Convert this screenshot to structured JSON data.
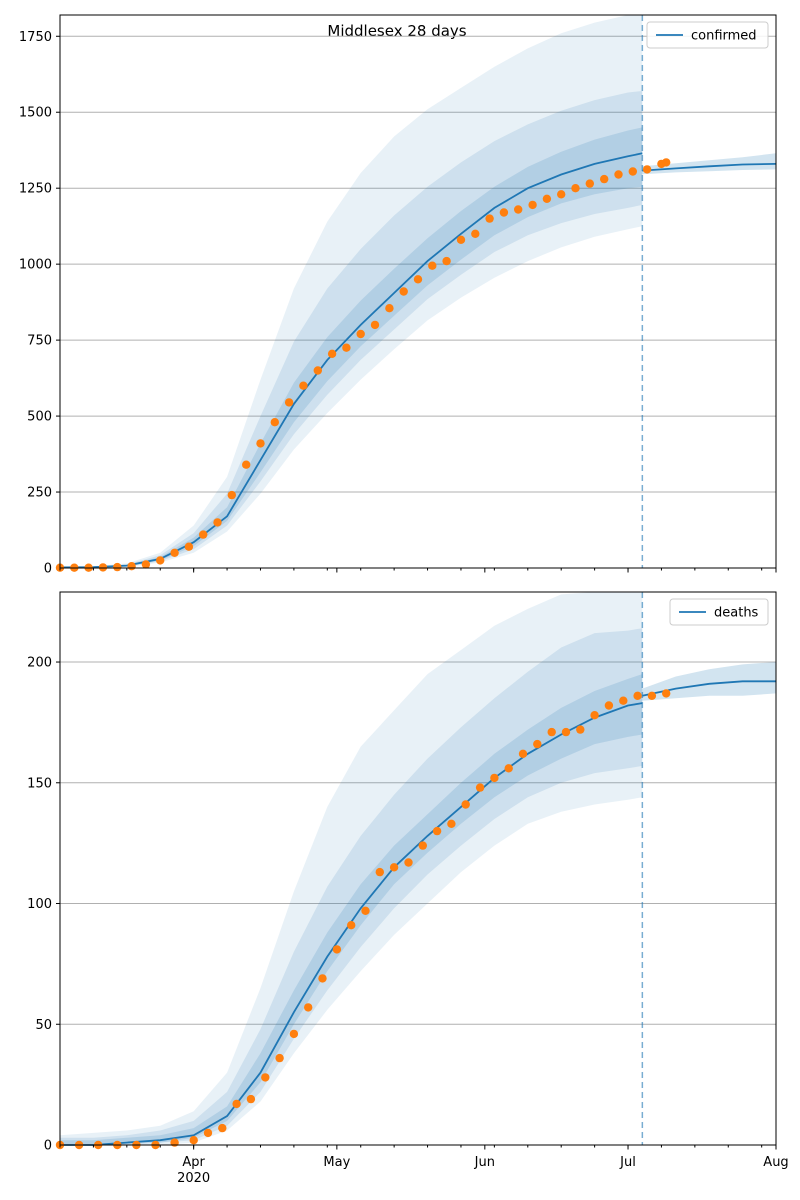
{
  "title": "Middlesex 28 days",
  "colors": {
    "model_line": "#1f77b4",
    "observed": "#ff7f0e",
    "band": "#1f77b4",
    "grid": "#b0b0b0"
  },
  "chart_data": [
    {
      "type": "line",
      "panel": "top",
      "title": "Middlesex 28 days",
      "legend": {
        "label": "confirmed",
        "placement": "top-right"
      },
      "xlabel": "",
      "ylabel": "",
      "xlim": [
        "2020-03-04",
        "2020-08-01"
      ],
      "ylim": [
        0,
        1820
      ],
      "yticks": [
        0,
        250,
        500,
        750,
        1000,
        1250,
        1500,
        1750
      ],
      "xticks": [
        {
          "date": "2020-04-01",
          "label": "Apr",
          "sublabel": "2020"
        },
        {
          "date": "2020-05-01",
          "label": "May",
          "sublabel": ""
        },
        {
          "date": "2020-06-01",
          "label": "Jun",
          "sublabel": ""
        },
        {
          "date": "2020-07-01",
          "label": "Jul",
          "sublabel": ""
        },
        {
          "date": "2020-08-01",
          "label": "Aug",
          "sublabel": ""
        }
      ],
      "grid": "horizontal",
      "forecast_start": "2020-07-04",
      "series": [
        {
          "role": "model",
          "name": "confirmed",
          "x": [
            "2020-03-04",
            "2020-03-11",
            "2020-03-18",
            "2020-03-25",
            "2020-04-01",
            "2020-04-08",
            "2020-04-15",
            "2020-04-22",
            "2020-04-29",
            "2020-05-06",
            "2020-05-13",
            "2020-05-20",
            "2020-05-27",
            "2020-06-03",
            "2020-06-10",
            "2020-06-17",
            "2020-06-24",
            "2020-07-01",
            "2020-07-04"
          ],
          "y": [
            2,
            3,
            8,
            30,
            85,
            170,
            355,
            540,
            685,
            800,
            905,
            1010,
            1100,
            1185,
            1250,
            1295,
            1330,
            1355,
            1365
          ],
          "bands": [
            {
              "lower": [
                0,
                0,
                3,
                18,
                50,
                120,
                245,
                390,
                510,
                620,
                720,
                815,
                890,
                955,
                1010,
                1055,
                1090,
                1115,
                1125
              ],
              "upper": [
                5,
                6,
                15,
                50,
                140,
                300,
                620,
                920,
                1140,
                1300,
                1420,
                1510,
                1580,
                1650,
                1710,
                1760,
                1795,
                1820,
                1820
              ]
            },
            {
              "lower": [
                0,
                1,
                5,
                22,
                62,
                140,
                285,
                440,
                570,
                685,
                785,
                885,
                965,
                1040,
                1095,
                1135,
                1165,
                1185,
                1195
              ],
              "upper": [
                4,
                5,
                12,
                42,
                115,
                245,
                500,
                745,
                920,
                1050,
                1160,
                1255,
                1335,
                1405,
                1460,
                1505,
                1540,
                1565,
                1570
              ]
            },
            {
              "lower": [
                1,
                2,
                6,
                25,
                72,
                155,
                315,
                480,
                615,
                730,
                830,
                930,
                1015,
                1095,
                1155,
                1200,
                1230,
                1250,
                1255
              ],
              "upper": [
                3,
                4,
                10,
                36,
                100,
                200,
                410,
                610,
                760,
                880,
                985,
                1085,
                1175,
                1255,
                1320,
                1370,
                1410,
                1440,
                1450
              ]
            }
          ]
        },
        {
          "role": "forecast",
          "x": [
            "2020-07-04",
            "2020-07-11",
            "2020-07-18",
            "2020-07-25",
            "2020-08-01"
          ],
          "y": [
            1308,
            1315,
            1322,
            1328,
            1330
          ],
          "band_lower": [
            1296,
            1302,
            1306,
            1310,
            1312
          ],
          "band_upper": [
            1322,
            1332,
            1342,
            1352,
            1365
          ]
        },
        {
          "role": "observed",
          "x": [
            "2020-03-04",
            "2020-03-07",
            "2020-03-10",
            "2020-03-13",
            "2020-03-16",
            "2020-03-19",
            "2020-03-22",
            "2020-03-25",
            "2020-03-28",
            "2020-03-31",
            "2020-04-03",
            "2020-04-06",
            "2020-04-09",
            "2020-04-12",
            "2020-04-15",
            "2020-04-18",
            "2020-04-21",
            "2020-04-24",
            "2020-04-27",
            "2020-04-30",
            "2020-05-03",
            "2020-05-06",
            "2020-05-09",
            "2020-05-12",
            "2020-05-15",
            "2020-05-18",
            "2020-05-21",
            "2020-05-24",
            "2020-05-27",
            "2020-05-30",
            "2020-06-02",
            "2020-06-05",
            "2020-06-08",
            "2020-06-11",
            "2020-06-14",
            "2020-06-17",
            "2020-06-20",
            "2020-06-23",
            "2020-06-26",
            "2020-06-29",
            "2020-07-02",
            "2020-07-05",
            "2020-07-08",
            "2020-07-09"
          ],
          "y": [
            1,
            1,
            1,
            2,
            3,
            6,
            12,
            25,
            50,
            70,
            110,
            150,
            240,
            340,
            410,
            480,
            545,
            600,
            650,
            705,
            725,
            770,
            800,
            855,
            910,
            950,
            995,
            1010,
            1080,
            1100,
            1150,
            1170,
            1180,
            1195,
            1215,
            1230,
            1250,
            1265,
            1280,
            1295,
            1305,
            1312,
            1330,
            1335
          ]
        }
      ]
    },
    {
      "type": "line",
      "panel": "bottom",
      "legend": {
        "label": "deaths",
        "placement": "top-right"
      },
      "xlabel": "",
      "ylabel": "",
      "xlim": [
        "2020-03-04",
        "2020-08-01"
      ],
      "ylim": [
        0,
        229
      ],
      "yticks": [
        0,
        50,
        100,
        150,
        200
      ],
      "xticks": [
        {
          "date": "2020-04-01",
          "label": "Apr",
          "sublabel": "2020"
        },
        {
          "date": "2020-05-01",
          "label": "May",
          "sublabel": ""
        },
        {
          "date": "2020-06-01",
          "label": "Jun",
          "sublabel": ""
        },
        {
          "date": "2020-07-01",
          "label": "Jul",
          "sublabel": ""
        },
        {
          "date": "2020-08-01",
          "label": "Aug",
          "sublabel": ""
        }
      ],
      "grid": "horizontal",
      "forecast_start": "2020-07-04",
      "series": [
        {
          "role": "model",
          "name": "deaths",
          "x": [
            "2020-03-04",
            "2020-03-11",
            "2020-03-18",
            "2020-03-25",
            "2020-04-01",
            "2020-04-08",
            "2020-04-15",
            "2020-04-22",
            "2020-04-29",
            "2020-05-06",
            "2020-05-13",
            "2020-05-20",
            "2020-05-27",
            "2020-06-03",
            "2020-06-10",
            "2020-06-17",
            "2020-06-24",
            "2020-07-01",
            "2020-07-04"
          ],
          "y": [
            0,
            0,
            1,
            2,
            4,
            12,
            30,
            55,
            78,
            98,
            115,
            128,
            140,
            152,
            162,
            170,
            177,
            182,
            183
          ],
          "bands": [
            {
              "lower": [
                0,
                0,
                0,
                0,
                1,
                6,
                18,
                38,
                56,
                72,
                87,
                100,
                113,
                124,
                133,
                138,
                141,
                143,
                144
              ],
              "upper": [
                4,
                5,
                6,
                8,
                14,
                30,
                65,
                105,
                140,
                165,
                180,
                195,
                205,
                215,
                222,
                228,
                229,
                229,
                229
              ]
            },
            {
              "lower": [
                0,
                0,
                0,
                1,
                2,
                8,
                22,
                44,
                64,
                82,
                98,
                112,
                124,
                135,
                144,
                150,
                154,
                156,
                157
              ],
              "upper": [
                3,
                3,
                4,
                6,
                10,
                22,
                48,
                80,
                107,
                128,
                145,
                160,
                173,
                185,
                196,
                206,
                212,
                213,
                214
              ]
            },
            {
              "lower": [
                0,
                0,
                1,
                1,
                3,
                10,
                26,
                50,
                72,
                91,
                108,
                121,
                133,
                144,
                153,
                160,
                166,
                169,
                170
              ],
              "upper": [
                2,
                2,
                3,
                4,
                7,
                16,
                38,
                64,
                88,
                108,
                124,
                137,
                150,
                162,
                172,
                181,
                188,
                193,
                195
              ]
            }
          ]
        },
        {
          "role": "forecast",
          "x": [
            "2020-07-04",
            "2020-07-11",
            "2020-07-18",
            "2020-07-25",
            "2020-08-01"
          ],
          "y": [
            186,
            189,
            191,
            192,
            192
          ],
          "band_lower": [
            184,
            185,
            186,
            186,
            187
          ],
          "band_upper": [
            189,
            194,
            197,
            199,
            200
          ]
        },
        {
          "role": "observed",
          "x": [
            "2020-03-04",
            "2020-03-08",
            "2020-03-12",
            "2020-03-16",
            "2020-03-20",
            "2020-03-24",
            "2020-03-28",
            "2020-04-01",
            "2020-04-04",
            "2020-04-07",
            "2020-04-10",
            "2020-04-13",
            "2020-04-16",
            "2020-04-19",
            "2020-04-22",
            "2020-04-25",
            "2020-04-28",
            "2020-05-01",
            "2020-05-04",
            "2020-05-07",
            "2020-05-10",
            "2020-05-13",
            "2020-05-16",
            "2020-05-19",
            "2020-05-22",
            "2020-05-25",
            "2020-05-28",
            "2020-05-31",
            "2020-06-03",
            "2020-06-06",
            "2020-06-09",
            "2020-06-12",
            "2020-06-15",
            "2020-06-18",
            "2020-06-21",
            "2020-06-24",
            "2020-06-27",
            "2020-06-30",
            "2020-07-03",
            "2020-07-06",
            "2020-07-09"
          ],
          "y": [
            0,
            0,
            0,
            0,
            0,
            0,
            1,
            2,
            5,
            7,
            17,
            19,
            28,
            36,
            46,
            57,
            69,
            81,
            91,
            97,
            113,
            115,
            117,
            124,
            130,
            133,
            141,
            148,
            152,
            156,
            162,
            166,
            171,
            171,
            172,
            178,
            182,
            184,
            186,
            186,
            187
          ]
        }
      ]
    }
  ]
}
